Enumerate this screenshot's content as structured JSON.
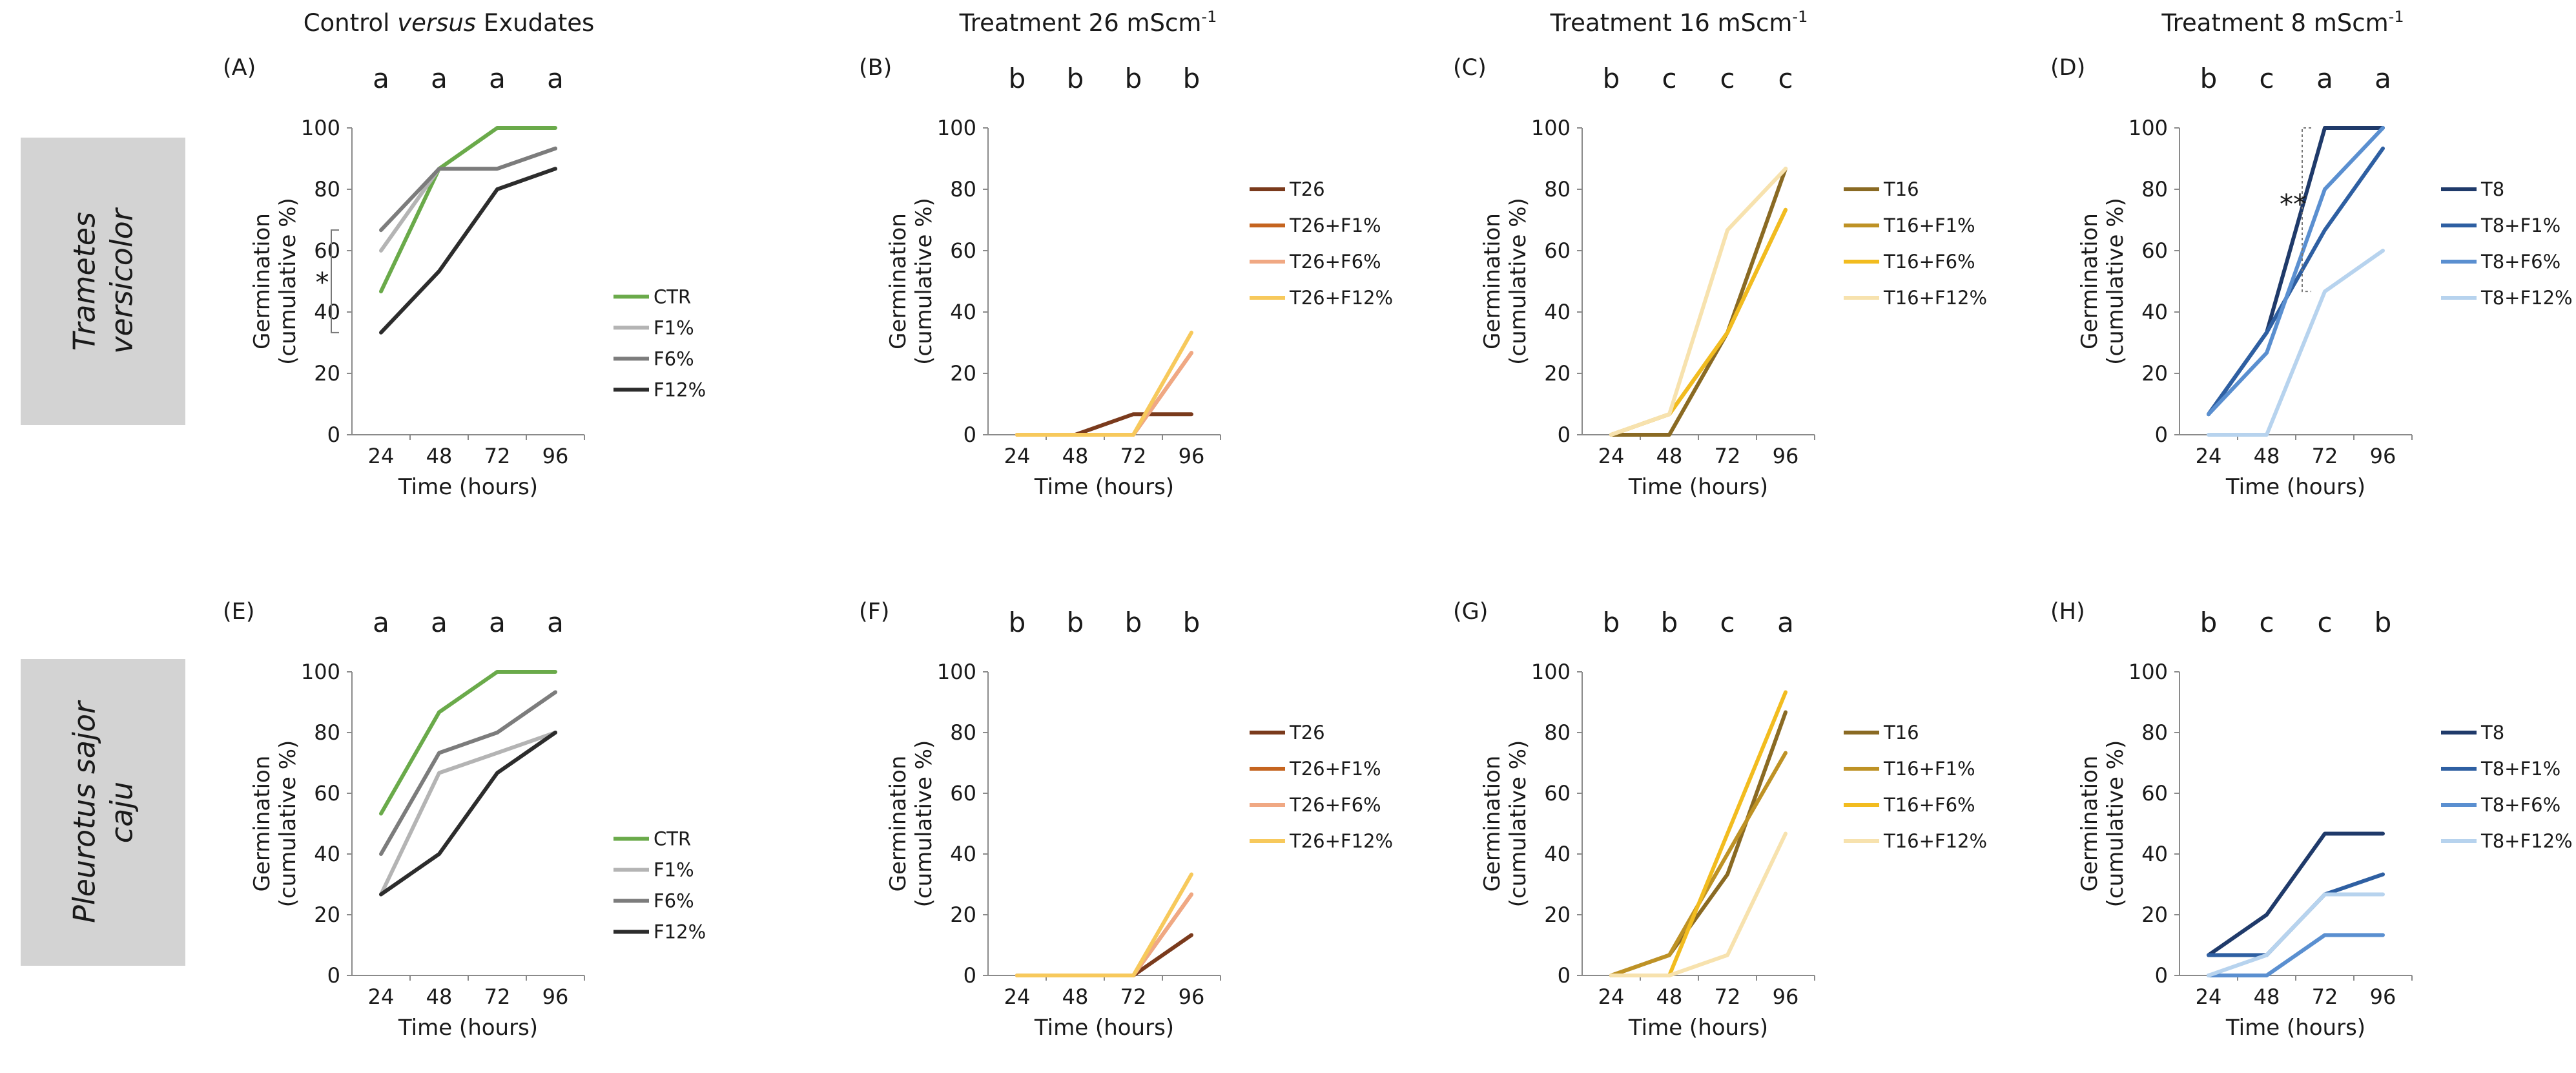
{
  "column_titles": [
    {
      "pre": "Control ",
      "em": "versus",
      "post": " Exudates",
      "sup": ""
    },
    {
      "pre": "Treatment 26 mScm",
      "em": "",
      "post": "",
      "sup": "-1"
    },
    {
      "pre": "Treatment 16 mScm",
      "em": "",
      "post": "",
      "sup": "-1"
    },
    {
      "pre": "Treatment 8 mScm",
      "em": "",
      "post": "",
      "sup": "-1"
    }
  ],
  "row_labels": [
    [
      "Trametes",
      "versicolor"
    ],
    [
      "Pleurotus sajor",
      "caju"
    ]
  ],
  "colors": {
    "ctrl": [
      "#6aaa4a",
      "#b4b4b4",
      "#7c7c7c",
      "#2c2c2c"
    ],
    "t26": [
      "#7a3a1c",
      "#c5641f",
      "#f0a883",
      "#f7c95c"
    ],
    "t16": [
      "#8a6a23",
      "#be9225",
      "#f2bc1f",
      "#f7e2ae"
    ],
    "t8": [
      "#1f3a6a",
      "#2e5fa2",
      "#5a8fd0",
      "#b7d3ee"
    ],
    "row_label_bg": "#d3d3d3",
    "axis": "#8a8a8a",
    "text": "#1a1a1a"
  },
  "chart_data": [
    {
      "type": "line",
      "panel": "(A)",
      "ylabel": [
        "Germination",
        "(cumulative %)"
      ],
      "xlabel": "Time (hours)",
      "categories": [
        "24",
        "48",
        "72",
        "96"
      ],
      "ylim": [
        0,
        100
      ],
      "yticks": [
        "0",
        "20",
        "40",
        "60",
        "80",
        "100"
      ],
      "significance": [
        "a",
        "a",
        "a",
        "a"
      ],
      "series": [
        {
          "name": "CTR",
          "values": [
            46.7,
            86.7,
            100,
            100
          ]
        },
        {
          "name": "F1%",
          "values": [
            60,
            86.7,
            86.7,
            93.3
          ]
        },
        {
          "name": "F6%",
          "values": [
            66.7,
            86.7,
            86.7,
            93.3
          ]
        },
        {
          "name": "F12%",
          "values": [
            33.3,
            53.3,
            80,
            86.7
          ]
        }
      ],
      "annotation": "*"
    },
    {
      "type": "line",
      "panel": "(B)",
      "ylabel": [
        "Germination",
        "(cumulative %)"
      ],
      "xlabel": "Time (hours)",
      "categories": [
        "24",
        "48",
        "72",
        "96"
      ],
      "ylim": [
        0,
        100
      ],
      "yticks": [
        "0",
        "20",
        "40",
        "60",
        "80",
        "100"
      ],
      "significance": [
        "b",
        "b",
        "b",
        "b"
      ],
      "series": [
        {
          "name": "T26",
          "values": [
            0,
            0,
            6.7,
            6.7
          ]
        },
        {
          "name": "T26+F1%",
          "values": [
            0,
            0,
            0,
            26.7
          ]
        },
        {
          "name": "T26+F6%",
          "values": [
            0,
            0,
            0,
            26.7
          ]
        },
        {
          "name": "T26+F12%",
          "values": [
            0,
            0,
            0,
            33.3
          ]
        }
      ]
    },
    {
      "type": "line",
      "panel": "(C)",
      "ylabel": [
        "Germination",
        "(cumulative %)"
      ],
      "xlabel": "Time (hours)",
      "categories": [
        "24",
        "48",
        "72",
        "96"
      ],
      "ylim": [
        0,
        100
      ],
      "yticks": [
        "0",
        "20",
        "40",
        "60",
        "80",
        "100"
      ],
      "significance": [
        "b",
        "c",
        "c",
        "c"
      ],
      "series": [
        {
          "name": "T16",
          "values": [
            0,
            0,
            33.3,
            86.7
          ]
        },
        {
          "name": "T16+F1%",
          "values": [
            0,
            6.7,
            33.3,
            73.3
          ]
        },
        {
          "name": "T16+F6%",
          "values": [
            0,
            6.7,
            33.3,
            73.3
          ]
        },
        {
          "name": "T16+F12%",
          "values": [
            0,
            6.7,
            66.7,
            86.7
          ]
        }
      ]
    },
    {
      "type": "line",
      "panel": "(D)",
      "ylabel": [
        "Germination",
        "(cumulative %)"
      ],
      "xlabel": "Time (hours)",
      "categories": [
        "24",
        "48",
        "72",
        "96"
      ],
      "ylim": [
        0,
        100
      ],
      "yticks": [
        "0",
        "20",
        "40",
        "60",
        "80",
        "100"
      ],
      "significance": [
        "b",
        "c",
        "a",
        "a"
      ],
      "series": [
        {
          "name": "T8",
          "values": [
            6.7,
            33.3,
            100,
            100
          ]
        },
        {
          "name": "T8+F1%",
          "values": [
            6.7,
            33.3,
            66.7,
            93.3
          ]
        },
        {
          "name": "T8+F6%",
          "values": [
            6.7,
            26.7,
            80,
            100
          ]
        },
        {
          "name": "T8+F12%",
          "values": [
            0,
            0,
            46.7,
            60
          ]
        }
      ],
      "annotation": "**"
    },
    {
      "type": "line",
      "panel": "(E)",
      "ylabel": [
        "Germination",
        "(cumulative %)"
      ],
      "xlabel": "Time (hours)",
      "categories": [
        "24",
        "48",
        "72",
        "96"
      ],
      "ylim": [
        0,
        100
      ],
      "yticks": [
        "0",
        "20",
        "40",
        "60",
        "80",
        "100"
      ],
      "significance": [
        "a",
        "a",
        "a",
        "a"
      ],
      "series": [
        {
          "name": "CTR",
          "values": [
            53.3,
            86.7,
            100,
            100
          ]
        },
        {
          "name": "F1%",
          "values": [
            26.7,
            66.7,
            73.3,
            80
          ]
        },
        {
          "name": "F6%",
          "values": [
            40,
            73.3,
            80,
            93.3
          ]
        },
        {
          "name": "F12%",
          "values": [
            26.7,
            40,
            66.7,
            80
          ]
        }
      ]
    },
    {
      "type": "line",
      "panel": "(F)",
      "ylabel": [
        "Germination",
        "(cumulative %)"
      ],
      "xlabel": "Time (hours)",
      "categories": [
        "24",
        "48",
        "72",
        "96"
      ],
      "ylim": [
        0,
        100
      ],
      "yticks": [
        "0",
        "20",
        "40",
        "60",
        "80",
        "100"
      ],
      "significance": [
        "b",
        "b",
        "b",
        "b"
      ],
      "series": [
        {
          "name": "T26",
          "values": [
            0,
            0,
            0,
            13.3
          ]
        },
        {
          "name": "T26+F1%",
          "values": [
            0,
            0,
            0,
            26.7
          ]
        },
        {
          "name": "T26+F6%",
          "values": [
            0,
            0,
            0,
            26.7
          ]
        },
        {
          "name": "T26+F12%",
          "values": [
            0,
            0,
            0,
            33.3
          ]
        }
      ]
    },
    {
      "type": "line",
      "panel": "(G)",
      "ylabel": [
        "Germination",
        "(cumulative %)"
      ],
      "xlabel": "Time (hours)",
      "categories": [
        "24",
        "48",
        "72",
        "96"
      ],
      "ylim": [
        0,
        100
      ],
      "yticks": [
        "0",
        "20",
        "40",
        "60",
        "80",
        "100"
      ],
      "significance": [
        "b",
        "b",
        "c",
        "a"
      ],
      "series": [
        {
          "name": "T16",
          "values": [
            0,
            6.7,
            33.3,
            86.7
          ]
        },
        {
          "name": "T16+F1%",
          "values": [
            0,
            6.7,
            40,
            73.3
          ]
        },
        {
          "name": "T16+F6%",
          "values": [
            0,
            0,
            46.7,
            93.3
          ]
        },
        {
          "name": "T16+F12%",
          "values": [
            0,
            0,
            6.7,
            46.7
          ]
        }
      ]
    },
    {
      "type": "line",
      "panel": "(H)",
      "ylabel": [
        "Germination",
        "(cumulative %)"
      ],
      "xlabel": "Time (hours)",
      "categories": [
        "24",
        "48",
        "72",
        "96"
      ],
      "ylim": [
        0,
        100
      ],
      "yticks": [
        "0",
        "20",
        "40",
        "60",
        "80",
        "100"
      ],
      "significance": [
        "b",
        "c",
        "c",
        "b"
      ],
      "series": [
        {
          "name": "T8",
          "values": [
            6.7,
            20,
            46.7,
            46.7
          ]
        },
        {
          "name": "T8+F1%",
          "values": [
            6.7,
            6.7,
            26.7,
            33.3
          ]
        },
        {
          "name": "T8+F6%",
          "values": [
            0,
            0,
            13.3,
            13.3
          ]
        },
        {
          "name": "T8+F12%",
          "values": [
            0,
            6.7,
            26.7,
            26.7
          ]
        }
      ]
    }
  ]
}
